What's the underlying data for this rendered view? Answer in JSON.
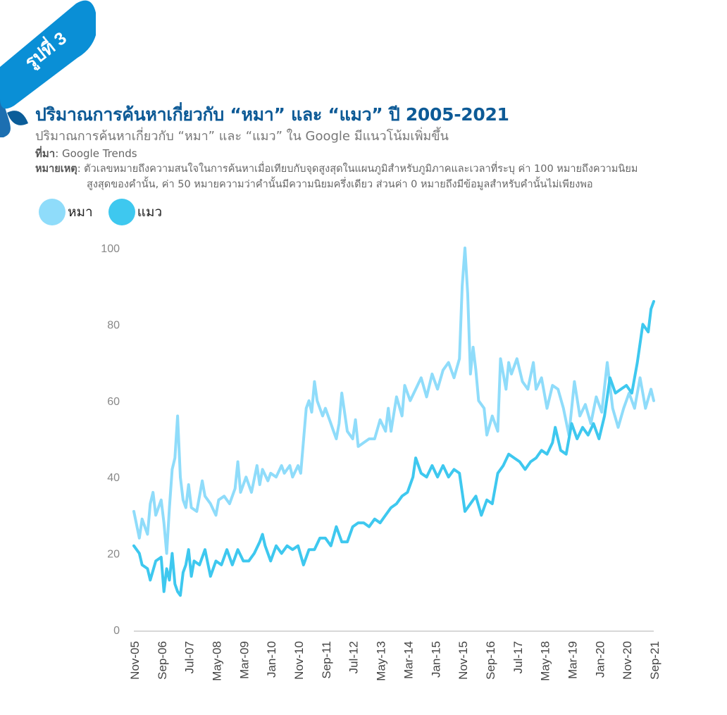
{
  "badge": {
    "text": "รูปที่ 3",
    "color": "#0a8fd6"
  },
  "header": {
    "title": "ปริมาณการค้นหาเกี่ยวกับ “หมา” และ “แมว” ปี 2005-2021",
    "subtitle": "ปริมาณการค้นหาเกี่ยวกับ “หมา” และ “แมว” ใน Google มีแนวโน้มเพิ่มขึ้น",
    "source_label": "ที่มา",
    "source_text": ": Google Trends",
    "note_label": "หมายเหตุ",
    "note_line1": ": ตัวเลขหมายถึงความสนใจในการค้นหาเมื่อเทียบกับจุดสูงสุดในแผนภูมิสำหรับภูมิภาคและเวลาที่ระบุ ค่า 100 หมายถึงความนิยม",
    "note_line2": "สูงสุดของคำนั้น, ค่า 50 หมายความว่าคำนั้นมีความนิยมครึ่งเดียว ส่วนค่า 0 หมายถึงมีข้อมูลสำหรับคำนั้นไม่เพียงพอ"
  },
  "chart_data": {
    "type": "line",
    "ylim": [
      0,
      100
    ],
    "yticks": [
      0,
      20,
      40,
      60,
      80,
      100
    ],
    "xlim": [
      "2005-11",
      "2021-09"
    ],
    "xticks": [
      "Nov-05",
      "Sep-06",
      "Jul-07",
      "May-08",
      "Mar-09",
      "Jan-10",
      "Nov-10",
      "Sep-11",
      "Jul-12",
      "May-13",
      "Mar-14",
      "Jan-15",
      "Nov-15",
      "Sep-16",
      "Jul-17",
      "May-18",
      "Mar-19",
      "Jan-20",
      "Nov-20",
      "Sep-21"
    ],
    "series": [
      {
        "name": "หมา",
        "color": "#8fdcfa",
        "points": [
          [
            "2005-11",
            31
          ],
          [
            "2006-01",
            24
          ],
          [
            "2006-02",
            29
          ],
          [
            "2006-04",
            25
          ],
          [
            "2006-05",
            33
          ],
          [
            "2006-06",
            36
          ],
          [
            "2006-07",
            30
          ],
          [
            "2006-09",
            34
          ],
          [
            "2006-10",
            28
          ],
          [
            "2006-11",
            20
          ],
          [
            "2006-12",
            32
          ],
          [
            "2007-01",
            42
          ],
          [
            "2007-02",
            45
          ],
          [
            "2007-03",
            56
          ],
          [
            "2007-04",
            40
          ],
          [
            "2007-05",
            34
          ],
          [
            "2007-06",
            32
          ],
          [
            "2007-07",
            38
          ],
          [
            "2007-08",
            32
          ],
          [
            "2007-10",
            31
          ],
          [
            "2007-12",
            39
          ],
          [
            "2008-01",
            35
          ],
          [
            "2008-03",
            33
          ],
          [
            "2008-05",
            30
          ],
          [
            "2008-06",
            34
          ],
          [
            "2008-08",
            35
          ],
          [
            "2008-10",
            33
          ],
          [
            "2008-12",
            37
          ],
          [
            "2009-01",
            44
          ],
          [
            "2009-02",
            36
          ],
          [
            "2009-04",
            40
          ],
          [
            "2009-06",
            36
          ],
          [
            "2009-08",
            43
          ],
          [
            "2009-09",
            38
          ],
          [
            "2009-10",
            42
          ],
          [
            "2009-12",
            39
          ],
          [
            "2010-01",
            41
          ],
          [
            "2010-03",
            40
          ],
          [
            "2010-05",
            43
          ],
          [
            "2010-06",
            41
          ],
          [
            "2010-08",
            43
          ],
          [
            "2010-09",
            40
          ],
          [
            "2010-11",
            43
          ],
          [
            "2010-12",
            41
          ],
          [
            "2011-02",
            58
          ],
          [
            "2011-03",
            60
          ],
          [
            "2011-04",
            57
          ],
          [
            "2011-05",
            65
          ],
          [
            "2011-06",
            60
          ],
          [
            "2011-08",
            56
          ],
          [
            "2011-09",
            58
          ],
          [
            "2011-11",
            54
          ],
          [
            "2011-12",
            52
          ],
          [
            "2012-01",
            50
          ],
          [
            "2012-02",
            54
          ],
          [
            "2012-03",
            62
          ],
          [
            "2012-05",
            52
          ],
          [
            "2012-07",
            50
          ],
          [
            "2012-08",
            55
          ],
          [
            "2012-09",
            48
          ],
          [
            "2012-11",
            49
          ],
          [
            "2013-01",
            50
          ],
          [
            "2013-03",
            50
          ],
          [
            "2013-05",
            55
          ],
          [
            "2013-07",
            52
          ],
          [
            "2013-08",
            58
          ],
          [
            "2013-09",
            52
          ],
          [
            "2013-11",
            61
          ],
          [
            "2014-01",
            56
          ],
          [
            "2014-02",
            64
          ],
          [
            "2014-04",
            60
          ],
          [
            "2014-06",
            63
          ],
          [
            "2014-08",
            66
          ],
          [
            "2014-10",
            61
          ],
          [
            "2014-12",
            67
          ],
          [
            "2015-02",
            63
          ],
          [
            "2015-04",
            68
          ],
          [
            "2015-06",
            70
          ],
          [
            "2015-08",
            66
          ],
          [
            "2015-10",
            71
          ],
          [
            "2015-11",
            90
          ],
          [
            "2015-12",
            100
          ],
          [
            "2016-01",
            88
          ],
          [
            "2016-02",
            67
          ],
          [
            "2016-03",
            74
          ],
          [
            "2016-04",
            68
          ],
          [
            "2016-05",
            60
          ],
          [
            "2016-07",
            58
          ],
          [
            "2016-08",
            51
          ],
          [
            "2016-10",
            56
          ],
          [
            "2016-12",
            52
          ],
          [
            "2017-01",
            71
          ],
          [
            "2017-03",
            63
          ],
          [
            "2017-04",
            70
          ],
          [
            "2017-05",
            67
          ],
          [
            "2017-07",
            71
          ],
          [
            "2017-09",
            65
          ],
          [
            "2017-11",
            63
          ],
          [
            "2018-01",
            70
          ],
          [
            "2018-02",
            63
          ],
          [
            "2018-04",
            66
          ],
          [
            "2018-06",
            58
          ],
          [
            "2018-08",
            64
          ],
          [
            "2018-10",
            63
          ],
          [
            "2018-12",
            58
          ],
          [
            "2019-02",
            51
          ],
          [
            "2019-04",
            65
          ],
          [
            "2019-06",
            56
          ],
          [
            "2019-08",
            59
          ],
          [
            "2019-10",
            54
          ],
          [
            "2019-12",
            61
          ],
          [
            "2020-02",
            57
          ],
          [
            "2020-04",
            70
          ],
          [
            "2020-06",
            58
          ],
          [
            "2020-08",
            53
          ],
          [
            "2020-10",
            58
          ],
          [
            "2020-12",
            62
          ],
          [
            "2021-02",
            58
          ],
          [
            "2021-04",
            66
          ],
          [
            "2021-06",
            58
          ],
          [
            "2021-08",
            63
          ],
          [
            "2021-09",
            60
          ]
        ]
      },
      {
        "name": "แมว",
        "color": "#3ec8ef",
        "points": [
          [
            "2005-11",
            22
          ],
          [
            "2006-01",
            20
          ],
          [
            "2006-02",
            17
          ],
          [
            "2006-04",
            16
          ],
          [
            "2006-05",
            13
          ],
          [
            "2006-07",
            18
          ],
          [
            "2006-09",
            19
          ],
          [
            "2006-10",
            10
          ],
          [
            "2006-11",
            16
          ],
          [
            "2006-12",
            13
          ],
          [
            "2007-01",
            20
          ],
          [
            "2007-02",
            12
          ],
          [
            "2007-03",
            10
          ],
          [
            "2007-04",
            9
          ],
          [
            "2007-05",
            15
          ],
          [
            "2007-06",
            17
          ],
          [
            "2007-07",
            21
          ],
          [
            "2007-08",
            14
          ],
          [
            "2007-09",
            18
          ],
          [
            "2007-11",
            17
          ],
          [
            "2008-01",
            21
          ],
          [
            "2008-03",
            14
          ],
          [
            "2008-05",
            18
          ],
          [
            "2008-07",
            17
          ],
          [
            "2008-09",
            21
          ],
          [
            "2008-11",
            17
          ],
          [
            "2009-01",
            21
          ],
          [
            "2009-03",
            18
          ],
          [
            "2009-05",
            18
          ],
          [
            "2009-07",
            20
          ],
          [
            "2009-09",
            23
          ],
          [
            "2009-10",
            25
          ],
          [
            "2009-11",
            22
          ],
          [
            "2010-01",
            18
          ],
          [
            "2010-03",
            22
          ],
          [
            "2010-05",
            20
          ],
          [
            "2010-07",
            22
          ],
          [
            "2010-09",
            21
          ],
          [
            "2010-11",
            22
          ],
          [
            "2011-01",
            17
          ],
          [
            "2011-03",
            21
          ],
          [
            "2011-05",
            21
          ],
          [
            "2011-07",
            24
          ],
          [
            "2011-09",
            24
          ],
          [
            "2011-11",
            22
          ],
          [
            "2012-01",
            27
          ],
          [
            "2012-03",
            23
          ],
          [
            "2012-05",
            23
          ],
          [
            "2012-07",
            27
          ],
          [
            "2012-09",
            28
          ],
          [
            "2012-11",
            28
          ],
          [
            "2013-01",
            27
          ],
          [
            "2013-03",
            29
          ],
          [
            "2013-05",
            28
          ],
          [
            "2013-07",
            30
          ],
          [
            "2013-09",
            32
          ],
          [
            "2013-11",
            33
          ],
          [
            "2014-01",
            35
          ],
          [
            "2014-03",
            36
          ],
          [
            "2014-05",
            40
          ],
          [
            "2014-06",
            45
          ],
          [
            "2014-08",
            41
          ],
          [
            "2014-10",
            40
          ],
          [
            "2014-12",
            43
          ],
          [
            "2015-02",
            40
          ],
          [
            "2015-04",
            43
          ],
          [
            "2015-06",
            40
          ],
          [
            "2015-08",
            42
          ],
          [
            "2015-10",
            41
          ],
          [
            "2015-12",
            31
          ],
          [
            "2016-02",
            33
          ],
          [
            "2016-04",
            35
          ],
          [
            "2016-06",
            30
          ],
          [
            "2016-08",
            34
          ],
          [
            "2016-10",
            33
          ],
          [
            "2016-12",
            41
          ],
          [
            "2017-02",
            43
          ],
          [
            "2017-04",
            46
          ],
          [
            "2017-06",
            45
          ],
          [
            "2017-08",
            44
          ],
          [
            "2017-10",
            42
          ],
          [
            "2017-12",
            44
          ],
          [
            "2018-02",
            45
          ],
          [
            "2018-04",
            47
          ],
          [
            "2018-06",
            46
          ],
          [
            "2018-08",
            49
          ],
          [
            "2018-09",
            53
          ],
          [
            "2018-11",
            47
          ],
          [
            "2019-01",
            46
          ],
          [
            "2019-03",
            54
          ],
          [
            "2019-05",
            50
          ],
          [
            "2019-07",
            53
          ],
          [
            "2019-09",
            51
          ],
          [
            "2019-11",
            54
          ],
          [
            "2020-01",
            50
          ],
          [
            "2020-03",
            56
          ],
          [
            "2020-05",
            66
          ],
          [
            "2020-07",
            62
          ],
          [
            "2020-09",
            63
          ],
          [
            "2020-11",
            64
          ],
          [
            "2021-01",
            62
          ],
          [
            "2021-03",
            70
          ],
          [
            "2021-05",
            80
          ],
          [
            "2021-07",
            78
          ],
          [
            "2021-08",
            84
          ],
          [
            "2021-09",
            86
          ]
        ]
      }
    ]
  }
}
